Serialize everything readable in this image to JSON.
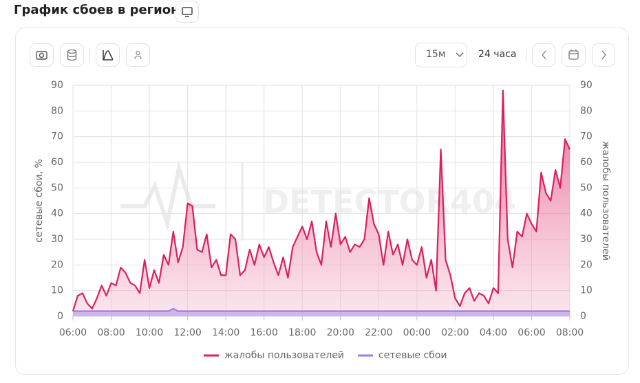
{
  "ui": {
    "title": "График сбоев в регионе",
    "interval": "15м",
    "range": "24 часа"
  },
  "chart_data": {
    "type": "area-line",
    "watermark": "DETECTOR404",
    "y_label": "сетевые сбои, %",
    "y2_label": "жалобы пользователей",
    "x": [
      0,
      0.25,
      0.5,
      0.75,
      1,
      1.25,
      1.5,
      1.75,
      2,
      2.25,
      2.5,
      2.75,
      3,
      3.25,
      3.5,
      3.75,
      4,
      4.25,
      4.5,
      4.75,
      5,
      5.25,
      5.5,
      5.75,
      6,
      6.25,
      6.5,
      6.75,
      7,
      7.25,
      7.5,
      7.75,
      8,
      8.25,
      8.5,
      8.75,
      9,
      9.25,
      9.5,
      9.75,
      10,
      10.25,
      10.5,
      10.75,
      11,
      11.25,
      11.5,
      11.75,
      12,
      12.25,
      12.5,
      12.75,
      13,
      13.25,
      13.5,
      13.75,
      14,
      14.25,
      14.5,
      14.75,
      15,
      15.25,
      15.5,
      15.75,
      16,
      16.25,
      16.5,
      16.75,
      17,
      17.25,
      17.5,
      17.75,
      18,
      18.25,
      18.5,
      18.75,
      19,
      19.25,
      19.5,
      19.75,
      20,
      20.25,
      20.5,
      20.75,
      21,
      21.25,
      21.5,
      21.75,
      22,
      22.25,
      22.5,
      22.75,
      23,
      23.25,
      23.5,
      23.75,
      24,
      24.25,
      24.5,
      24.75,
      25,
      25.25,
      25.5,
      25.75,
      26
    ],
    "xlim": [
      0,
      26
    ],
    "xticks": [
      {
        "value": 0,
        "label": "06:00"
      },
      {
        "value": 2,
        "label": "08:00"
      },
      {
        "value": 4,
        "label": "10:00"
      },
      {
        "value": 6,
        "label": "12:00"
      },
      {
        "value": 8,
        "label": "14:00"
      },
      {
        "value": 10,
        "label": "16:00"
      },
      {
        "value": 12,
        "label": "18:00"
      },
      {
        "value": 14,
        "label": "20:00"
      },
      {
        "value": 16,
        "label": "22:00"
      },
      {
        "value": 18,
        "label": "00:00"
      },
      {
        "value": 20,
        "label": "02:00"
      },
      {
        "value": 22,
        "label": "04:00"
      },
      {
        "value": 24,
        "label": "06:00"
      },
      {
        "value": 26,
        "label": "08:00"
      }
    ],
    "ylim": [
      0,
      90
    ],
    "yticks": [
      0,
      10,
      20,
      30,
      40,
      50,
      60,
      70,
      80,
      90
    ],
    "y2lim": [
      0,
      90
    ],
    "y2ticks": [
      0,
      10,
      20,
      30,
      40,
      50,
      60,
      70,
      80,
      90
    ],
    "grid": true,
    "legend": "bottom",
    "series": [
      {
        "name": "жалобы пользователей",
        "color": "#db1f5f",
        "axis": "y2",
        "values": [
          2,
          8,
          9,
          5,
          3,
          7,
          12,
          8,
          13,
          12,
          19,
          17,
          13,
          12,
          9,
          22,
          11,
          18,
          13,
          24,
          20,
          33,
          21,
          27,
          44,
          43,
          26,
          25,
          32,
          19,
          22,
          16,
          16,
          32,
          30,
          16,
          18,
          26,
          20,
          28,
          23,
          27,
          21,
          16,
          23,
          15,
          27,
          31,
          35,
          30,
          37,
          25,
          20,
          37,
          27,
          40,
          28,
          31,
          25,
          28,
          27,
          30,
          46,
          36,
          32,
          20,
          33,
          24,
          28,
          20,
          30,
          22,
          20,
          27,
          15,
          22,
          10,
          65,
          22,
          16,
          7,
          4,
          9,
          11,
          6,
          9,
          8,
          5,
          11,
          9,
          88,
          30,
          19,
          33,
          31,
          40,
          36,
          33,
          56,
          48,
          45,
          57,
          50,
          69,
          65
        ]
      },
      {
        "name": "сетевые сбои",
        "color": "#9a7ee8",
        "values": [
          2,
          2,
          2,
          2,
          2,
          2,
          2,
          2,
          2,
          2,
          2,
          2,
          2,
          2,
          2,
          2,
          2,
          2,
          2,
          2,
          2,
          3,
          2,
          2,
          2,
          2,
          2,
          2,
          2,
          2,
          2,
          2,
          2,
          2,
          2,
          2,
          2,
          2,
          2,
          2,
          2,
          2,
          2,
          2,
          2,
          2,
          2,
          2,
          2,
          2,
          2,
          2,
          2,
          2,
          2,
          2,
          2,
          2,
          2,
          2,
          2,
          2,
          2,
          2,
          2,
          2,
          2,
          2,
          2,
          2,
          2,
          2,
          2,
          2,
          2,
          2,
          2,
          2,
          2,
          2,
          2,
          2,
          2,
          2,
          2,
          2,
          2,
          2,
          2,
          2,
          2,
          2,
          2,
          2,
          2,
          2,
          2,
          2,
          2,
          2,
          2,
          2,
          2,
          2,
          2
        ]
      }
    ]
  }
}
